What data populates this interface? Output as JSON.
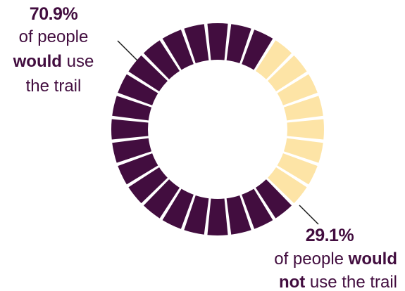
{
  "chart_data": {
    "type": "pie",
    "style": "segmented donut (28 segments)",
    "segment_count": 28,
    "series": [
      {
        "percent_text": "70.9%",
        "value": 70.9,
        "color": "#420d3f",
        "label_lines": [
          [
            {
              "text": "of people",
              "bold": false
            }
          ],
          [
            {
              "text": "would",
              "bold": true
            },
            {
              "text": " use",
              "bold": false
            }
          ],
          [
            {
              "text": "the trail",
              "bold": false
            }
          ]
        ]
      },
      {
        "percent_text": "29.1%",
        "value": 29.1,
        "color": "#fde4a6",
        "label_lines": [
          [
            {
              "text": "of people ",
              "bold": false
            },
            {
              "text": "would",
              "bold": true
            }
          ],
          [
            {
              "text": "not",
              "bold": true
            },
            {
              "text": " use the trail",
              "bold": false
            }
          ]
        ]
      }
    ],
    "text_color": "#420d3f"
  }
}
